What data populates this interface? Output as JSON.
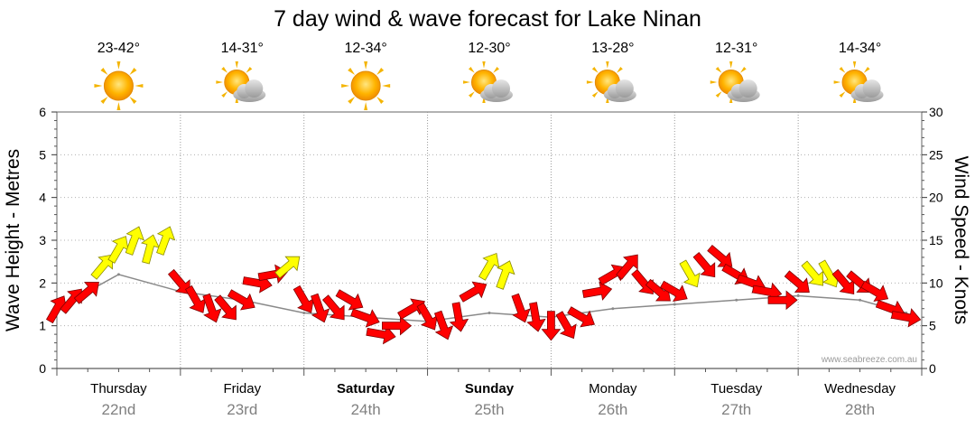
{
  "chart_data": {
    "type": "line",
    "title": "7 day wind & wave forecast for Lake Ninan",
    "ylabel_left": "Wave Height - Metres",
    "ylabel_right": "Wind Speed - Knots",
    "ylim_left": [
      0,
      6
    ],
    "ylim_right": [
      0,
      30
    ],
    "yticks_left": [
      "0",
      "1",
      "2",
      "3",
      "4",
      "5",
      "6"
    ],
    "yticks_right": [
      "0",
      "5",
      "10",
      "15",
      "20",
      "25",
      "30"
    ],
    "credit": "www.seabreeze.com.au",
    "days": [
      {
        "name": "Thursday",
        "date": "22nd",
        "temp": "23-42°",
        "weather": "sunny",
        "bold": false
      },
      {
        "name": "Friday",
        "date": "23rd",
        "temp": "14-31°",
        "weather": "partly-cloudy",
        "bold": false
      },
      {
        "name": "Saturday",
        "date": "24th",
        "temp": "12-34°",
        "weather": "sunny",
        "bold": true
      },
      {
        "name": "Sunday",
        "date": "25th",
        "temp": "12-30°",
        "weather": "partly-cloudy",
        "bold": true
      },
      {
        "name": "Monday",
        "date": "26th",
        "temp": "13-28°",
        "weather": "partly-cloudy",
        "bold": false
      },
      {
        "name": "Tuesday",
        "date": "27th",
        "temp": "12-31°",
        "weather": "partly-cloudy",
        "bold": false
      },
      {
        "name": "Wednesday",
        "date": "28th",
        "temp": "14-34°",
        "weather": "partly-cloudy",
        "bold": false
      }
    ],
    "series": [
      {
        "name": "Wind Speed - Knots",
        "axis": "right",
        "x_hours": [
          0,
          3,
          6,
          9,
          12,
          15,
          18,
          21,
          24,
          27,
          30,
          33,
          36,
          39,
          42,
          45,
          48,
          51,
          54,
          57,
          60,
          63,
          66,
          69,
          72,
          75,
          78,
          81,
          84,
          87,
          90,
          93,
          96,
          99,
          102,
          105,
          108,
          111,
          114,
          117,
          120,
          123,
          126,
          129,
          132,
          135,
          138,
          141,
          144,
          147,
          150,
          153,
          156,
          159,
          162,
          165
        ],
        "values": [
          7,
          8,
          9,
          12,
          14,
          15,
          14,
          15,
          10,
          8,
          7,
          7,
          8,
          10,
          11,
          12,
          8,
          7,
          7,
          8,
          6,
          4,
          5,
          7,
          6,
          5,
          6,
          9,
          12,
          11,
          7,
          6,
          5,
          5,
          6,
          9,
          11,
          12,
          10,
          9,
          9,
          11,
          12,
          13,
          11,
          10,
          9,
          8,
          10,
          11,
          11,
          10,
          10,
          9,
          7,
          6
        ],
        "colors": [
          "red",
          "red",
          "red",
          "yellow",
          "yellow",
          "yellow",
          "yellow",
          "yellow",
          "red",
          "red",
          "red",
          "red",
          "red",
          "red",
          "red",
          "yellow",
          "red",
          "red",
          "red",
          "red",
          "red",
          "red",
          "red",
          "red",
          "red",
          "red",
          "red",
          "red",
          "yellow",
          "yellow",
          "red",
          "red",
          "red",
          "red",
          "red",
          "red",
          "red",
          "red",
          "red",
          "red",
          "red",
          "yellow",
          "red",
          "red",
          "red",
          "red",
          "red",
          "red",
          "red",
          "yellow",
          "yellow",
          "red",
          "red",
          "red",
          "red",
          "red"
        ],
        "directions_deg": [
          30,
          40,
          50,
          40,
          30,
          20,
          15,
          20,
          140,
          150,
          160,
          140,
          120,
          100,
          80,
          50,
          150,
          160,
          140,
          120,
          110,
          100,
          90,
          60,
          150,
          160,
          170,
          60,
          30,
          20,
          160,
          170,
          180,
          150,
          120,
          80,
          60,
          40,
          140,
          130,
          120,
          150,
          140,
          130,
          120,
          110,
          100,
          90,
          130,
          140,
          150,
          140,
          130,
          120,
          110,
          100
        ]
      },
      {
        "name": "Wave Height - Metres",
        "axis": "left",
        "x_hours": [
          0,
          12,
          24,
          36,
          48,
          60,
          72,
          84,
          96,
          108,
          120,
          132,
          144,
          156,
          165
        ],
        "values": [
          1.4,
          2.2,
          1.8,
          1.6,
          1.3,
          1.2,
          1.1,
          1.3,
          1.2,
          1.4,
          1.5,
          1.6,
          1.7,
          1.6,
          1.3
        ]
      }
    ]
  }
}
